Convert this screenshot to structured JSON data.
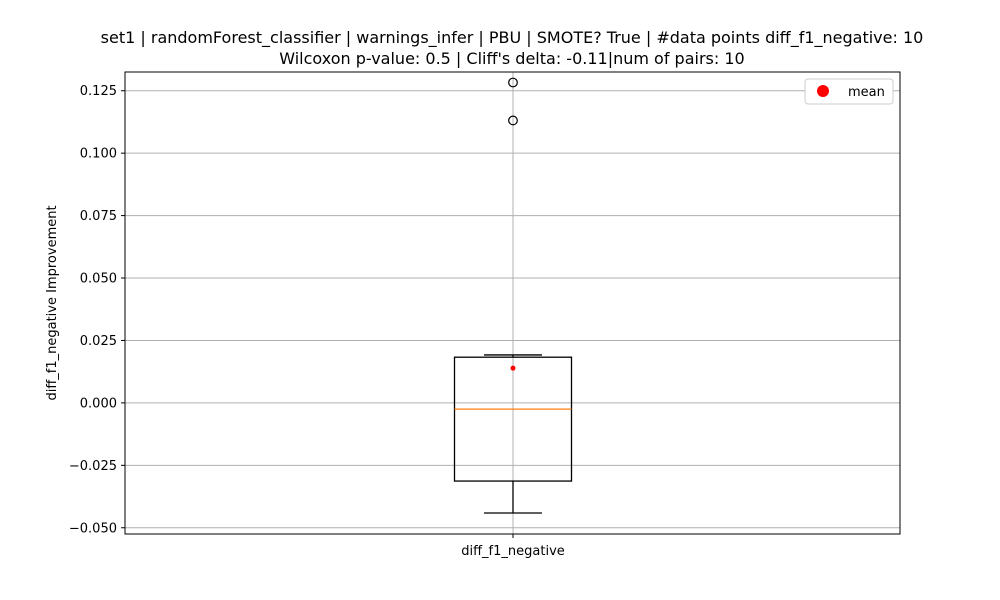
{
  "chart_data": {
    "type": "boxplot",
    "title_line1": "set1 | randomForest_classifier | warnings_infer | PBU | SMOTE? True | #data points diff_f1_negative: 10",
    "title_line2": "Wilcoxon p-value: 0.5 | Cliff's delta: -0.11|num of pairs: 10",
    "xlabel": "",
    "ylabel": "diff_f1_negative Improvement",
    "categories": [
      "diff_f1_negative"
    ],
    "ylim": [
      -0.0525,
      0.1325
    ],
    "yticks": [
      -0.05,
      -0.025,
      0.0,
      0.025,
      0.05,
      0.075,
      0.1,
      0.125
    ],
    "ytick_labels": [
      "−0.050",
      "−0.025",
      "0.000",
      "0.025",
      "0.050",
      "0.075",
      "0.100",
      "0.125"
    ],
    "grid": true,
    "box": {
      "whisker_low": -0.0441,
      "q1": -0.0313,
      "median": -0.0025,
      "q3": 0.0183,
      "whisker_high": 0.0192,
      "mean": 0.0139,
      "outliers": [
        0.1283,
        0.1131
      ]
    },
    "legend": {
      "position": "top-right",
      "entries": [
        {
          "label": "mean",
          "marker": "circle"
        }
      ]
    },
    "colors": {
      "box": "#000000",
      "median": "#ff7f0e",
      "mean": "#ff0000",
      "grid": "#b0b0b0"
    }
  }
}
